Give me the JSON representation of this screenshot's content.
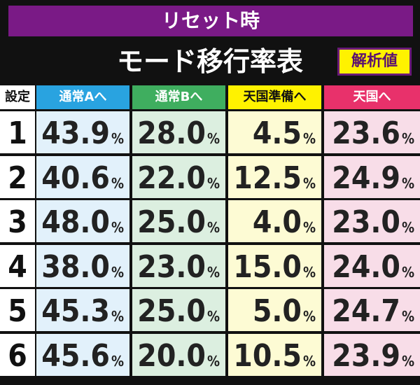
{
  "header": {
    "title": "リセット時",
    "subtitle": "モード移行率表",
    "badge": "解析値"
  },
  "table": {
    "columns": [
      "設定",
      "通常Aへ",
      "通常Bへ",
      "天国準備へ",
      "天国へ"
    ],
    "unit": "%",
    "rows": [
      [
        "1",
        "43.9",
        "28.0",
        "4.5",
        "23.6"
      ],
      [
        "2",
        "40.6",
        "22.0",
        "12.5",
        "24.9"
      ],
      [
        "3",
        "48.0",
        "25.0",
        "4.0",
        "23.0"
      ],
      [
        "4",
        "38.0",
        "23.0",
        "15.0",
        "24.0"
      ],
      [
        "5",
        "45.3",
        "25.0",
        "5.0",
        "24.7"
      ],
      [
        "6",
        "45.6",
        "20.0",
        "10.5",
        "23.9"
      ]
    ]
  }
}
